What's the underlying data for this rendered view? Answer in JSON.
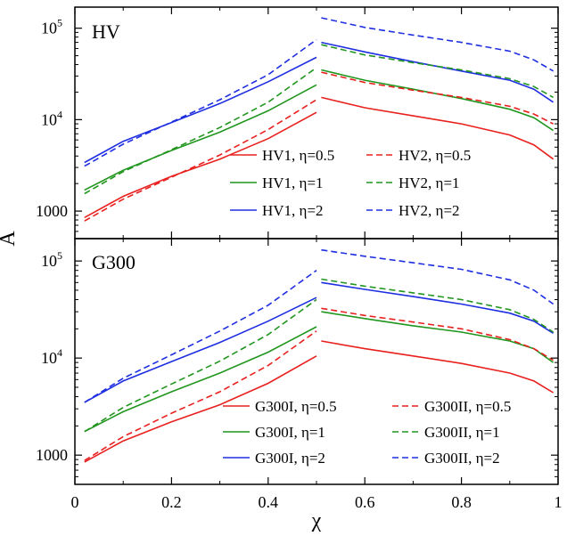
{
  "figure": {
    "xlabel": "χ",
    "ylabel": "A"
  },
  "chart_data": [
    {
      "type": "line",
      "panel_label": "HV",
      "x_scale": "linear",
      "y_scale": "log",
      "xlim": [
        0,
        1
      ],
      "ylim": [
        500,
        170000
      ],
      "xticks": [
        0,
        0.2,
        0.4,
        0.6,
        0.8,
        1
      ],
      "xtick_labels": [
        "0",
        "0.2",
        "0.4",
        "0.6",
        "0.8",
        "1"
      ],
      "show_xtick_labels": false,
      "yticks": [
        {
          "value": 1000,
          "base": "1000",
          "exp": ""
        },
        {
          "value": 10000,
          "base": "10",
          "exp": "4"
        },
        {
          "value": 100000,
          "base": "10",
          "exp": "5"
        }
      ],
      "legend_position": "bottom-right",
      "series": [
        {
          "name": "HV1, η=0.5",
          "color": "#e8201e",
          "dash": "solid",
          "left": [
            [
              0.02,
              850
            ],
            [
              0.1,
              1450
            ],
            [
              0.2,
              2400
            ],
            [
              0.3,
              3700
            ],
            [
              0.4,
              6200
            ],
            [
              0.5,
              12000
            ]
          ],
          "right": [
            [
              0.51,
              17500
            ],
            [
              0.6,
              13500
            ],
            [
              0.7,
              11000
            ],
            [
              0.8,
              9000
            ],
            [
              0.9,
              6800
            ],
            [
              0.95,
              5300
            ],
            [
              0.99,
              3700
            ]
          ]
        },
        {
          "name": "HV1, η=1",
          "color": "#21961e",
          "dash": "solid",
          "left": [
            [
              0.02,
              1700
            ],
            [
              0.1,
              2800
            ],
            [
              0.2,
              4600
            ],
            [
              0.3,
              7300
            ],
            [
              0.4,
              12500
            ],
            [
              0.5,
              24000
            ]
          ],
          "right": [
            [
              0.51,
              35000
            ],
            [
              0.6,
              27000
            ],
            [
              0.7,
              21500
            ],
            [
              0.8,
              17000
            ],
            [
              0.9,
              13000
            ],
            [
              0.95,
              10500
            ],
            [
              0.99,
              7600
            ]
          ]
        },
        {
          "name": "HV1, η=2",
          "color": "#1e2ee0",
          "dash": "solid",
          "left": [
            [
              0.02,
              3400
            ],
            [
              0.1,
              5800
            ],
            [
              0.2,
              9300
            ],
            [
              0.3,
              15000
            ],
            [
              0.4,
              26000
            ],
            [
              0.5,
              48000
            ]
          ],
          "right": [
            [
              0.51,
              70000
            ],
            [
              0.6,
              55000
            ],
            [
              0.7,
              43000
            ],
            [
              0.8,
              34000
            ],
            [
              0.9,
              27000
            ],
            [
              0.95,
              21500
            ],
            [
              0.99,
              15500
            ]
          ]
        },
        {
          "name": "HV2, η=0.5",
          "color": "#e8201e",
          "dash": "dashed",
          "left": [
            [
              0.02,
              780
            ],
            [
              0.1,
              1350
            ],
            [
              0.2,
              2350
            ],
            [
              0.3,
              4100
            ],
            [
              0.4,
              7800
            ],
            [
              0.5,
              16500
            ]
          ],
          "right": [
            [
              0.51,
              33000
            ],
            [
              0.6,
              25500
            ],
            [
              0.7,
              21000
            ],
            [
              0.8,
              17500
            ],
            [
              0.9,
              14000
            ],
            [
              0.95,
              11500
            ],
            [
              0.99,
              9000
            ]
          ]
        },
        {
          "name": "HV2, η=1",
          "color": "#21961e",
          "dash": "dashed",
          "left": [
            [
              0.02,
              1550
            ],
            [
              0.1,
              2700
            ],
            [
              0.2,
              4700
            ],
            [
              0.3,
              8200
            ],
            [
              0.4,
              15500
            ],
            [
              0.5,
              37000
            ]
          ],
          "right": [
            [
              0.51,
              66000
            ],
            [
              0.6,
              51000
            ],
            [
              0.7,
              42000
            ],
            [
              0.8,
              35000
            ],
            [
              0.9,
              28000
            ],
            [
              0.95,
              23000
            ],
            [
              0.99,
              17500
            ]
          ]
        },
        {
          "name": "HV2, η=2",
          "color": "#1e2ee0",
          "dash": "dashed",
          "left": [
            [
              0.02,
              3100
            ],
            [
              0.1,
              5400
            ],
            [
              0.2,
              9400
            ],
            [
              0.3,
              16500
            ],
            [
              0.4,
              31000
            ],
            [
              0.5,
              75000
            ]
          ],
          "right": [
            [
              0.51,
              130000
            ],
            [
              0.6,
              102000
            ],
            [
              0.7,
              84000
            ],
            [
              0.8,
              70000
            ],
            [
              0.9,
              56000
            ],
            [
              0.95,
              45000
            ],
            [
              0.99,
              34000
            ]
          ]
        }
      ]
    },
    {
      "type": "line",
      "panel_label": "G300",
      "x_scale": "linear",
      "y_scale": "log",
      "xlim": [
        0,
        1
      ],
      "ylim": [
        500,
        170000
      ],
      "xticks": [
        0,
        0.2,
        0.4,
        0.6,
        0.8,
        1
      ],
      "xtick_labels": [
        "0",
        "0.2",
        "0.4",
        "0.6",
        "0.8",
        "1"
      ],
      "show_xtick_labels": true,
      "yticks": [
        {
          "value": 1000,
          "base": "1000",
          "exp": ""
        },
        {
          "value": 10000,
          "base": "10",
          "exp": "4"
        },
        {
          "value": 100000,
          "base": "10",
          "exp": "5"
        }
      ],
      "legend_position": "bottom-right",
      "series": [
        {
          "name": "G300I, η=0.5",
          "color": "#e8201e",
          "dash": "solid",
          "left": [
            [
              0.02,
              850
            ],
            [
              0.1,
              1400
            ],
            [
              0.2,
              2200
            ],
            [
              0.3,
              3300
            ],
            [
              0.4,
              5500
            ],
            [
              0.5,
              10500
            ]
          ],
          "right": [
            [
              0.51,
              15000
            ],
            [
              0.6,
              12500
            ],
            [
              0.7,
              10500
            ],
            [
              0.8,
              8800
            ],
            [
              0.9,
              7000
            ],
            [
              0.95,
              5800
            ],
            [
              0.99,
              4400
            ]
          ]
        },
        {
          "name": "G300I, η=1",
          "color": "#21961e",
          "dash": "solid",
          "left": [
            [
              0.02,
              1750
            ],
            [
              0.1,
              2800
            ],
            [
              0.2,
              4500
            ],
            [
              0.3,
              7000
            ],
            [
              0.4,
              11500
            ],
            [
              0.5,
              21000
            ]
          ],
          "right": [
            [
              0.51,
              30000
            ],
            [
              0.6,
              25500
            ],
            [
              0.7,
              21500
            ],
            [
              0.8,
              18500
            ],
            [
              0.9,
              15000
            ],
            [
              0.95,
              12500
            ],
            [
              0.99,
              9000
            ]
          ]
        },
        {
          "name": "G300I, η=2",
          "color": "#1e2ee0",
          "dash": "solid",
          "left": [
            [
              0.02,
              3500
            ],
            [
              0.1,
              5800
            ],
            [
              0.2,
              9200
            ],
            [
              0.3,
              14500
            ],
            [
              0.4,
              24000
            ],
            [
              0.5,
              42000
            ]
          ],
          "right": [
            [
              0.51,
              60000
            ],
            [
              0.6,
              51000
            ],
            [
              0.7,
              43000
            ],
            [
              0.8,
              36000
            ],
            [
              0.9,
              29000
            ],
            [
              0.95,
              24000
            ],
            [
              0.99,
              18000
            ]
          ]
        },
        {
          "name": "G300II, η=0.5",
          "color": "#e8201e",
          "dash": "dashed",
          "left": [
            [
              0.02,
              880
            ],
            [
              0.1,
              1550
            ],
            [
              0.2,
              2700
            ],
            [
              0.3,
              4500
            ],
            [
              0.4,
              8400
            ],
            [
              0.5,
              19000
            ]
          ],
          "right": [
            [
              0.51,
              32500
            ],
            [
              0.6,
              27500
            ],
            [
              0.7,
              23500
            ],
            [
              0.8,
              20000
            ],
            [
              0.9,
              15500
            ],
            [
              0.95,
              12500
            ],
            [
              0.99,
              9500
            ]
          ]
        },
        {
          "name": "G300II, η=1",
          "color": "#21961e",
          "dash": "dashed",
          "left": [
            [
              0.02,
              1750
            ],
            [
              0.1,
              3100
            ],
            [
              0.2,
              5400
            ],
            [
              0.3,
              9300
            ],
            [
              0.4,
              17500
            ],
            [
              0.5,
              40000
            ]
          ],
          "right": [
            [
              0.51,
              65000
            ],
            [
              0.6,
              55000
            ],
            [
              0.7,
              47000
            ],
            [
              0.8,
              40000
            ],
            [
              0.9,
              31500
            ],
            [
              0.95,
              25000
            ],
            [
              0.99,
              18500
            ]
          ]
        },
        {
          "name": "G300II, η=2",
          "color": "#1e2ee0",
          "dash": "dashed",
          "left": [
            [
              0.02,
              3500
            ],
            [
              0.1,
              6200
            ],
            [
              0.2,
              10800
            ],
            [
              0.3,
              19000
            ],
            [
              0.4,
              35000
            ],
            [
              0.5,
              80000
            ]
          ],
          "right": [
            [
              0.51,
              130000
            ],
            [
              0.6,
              112000
            ],
            [
              0.7,
              96000
            ],
            [
              0.8,
              82000
            ],
            [
              0.9,
              64000
            ],
            [
              0.95,
              50000
            ],
            [
              0.99,
              36000
            ]
          ]
        }
      ]
    }
  ]
}
